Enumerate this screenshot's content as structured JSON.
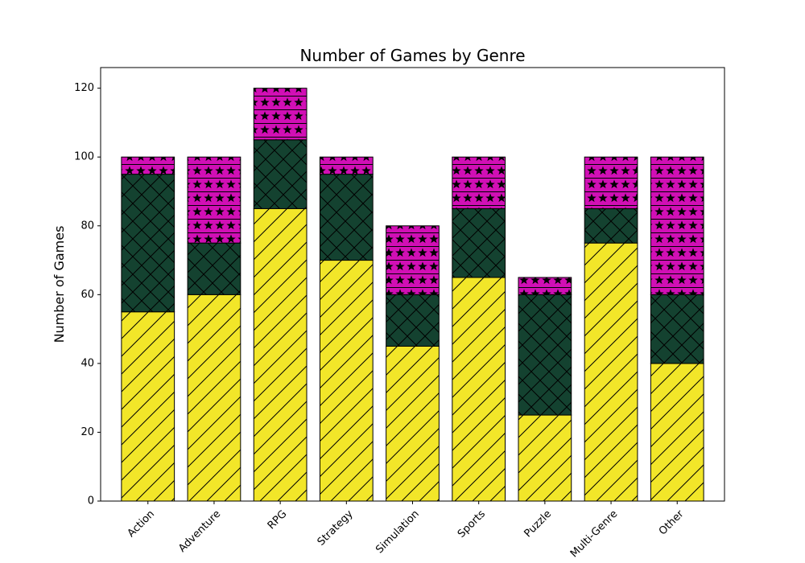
{
  "chart_data": {
    "type": "bar",
    "stacked": true,
    "title": "Number of Games by Genre",
    "xlabel": "",
    "ylabel": "Number of Games",
    "ylim": [
      0,
      126
    ],
    "yticks": [
      0,
      20,
      40,
      60,
      80,
      100,
      120
    ],
    "categories": [
      "Action",
      "Adventure",
      "RPG",
      "Strategy",
      "Simulation",
      "Sports",
      "Puzzle",
      "Multi-Genre",
      "Other"
    ],
    "series": [
      {
        "values": [
          55,
          60,
          85,
          70,
          45,
          65,
          25,
          75,
          40
        ],
        "color": "#f2e629",
        "hatch": "diagonal"
      },
      {
        "values": [
          40,
          15,
          20,
          25,
          15,
          20,
          35,
          10,
          20
        ],
        "color": "#144230",
        "hatch": "cross-diagonal"
      },
      {
        "values": [
          5,
          25,
          15,
          5,
          20,
          15,
          5,
          15,
          40
        ],
        "color": "#d10fb5",
        "hatch": "stars-lines"
      }
    ],
    "grid": false,
    "legend": "none",
    "xtick_rotation": 45
  }
}
